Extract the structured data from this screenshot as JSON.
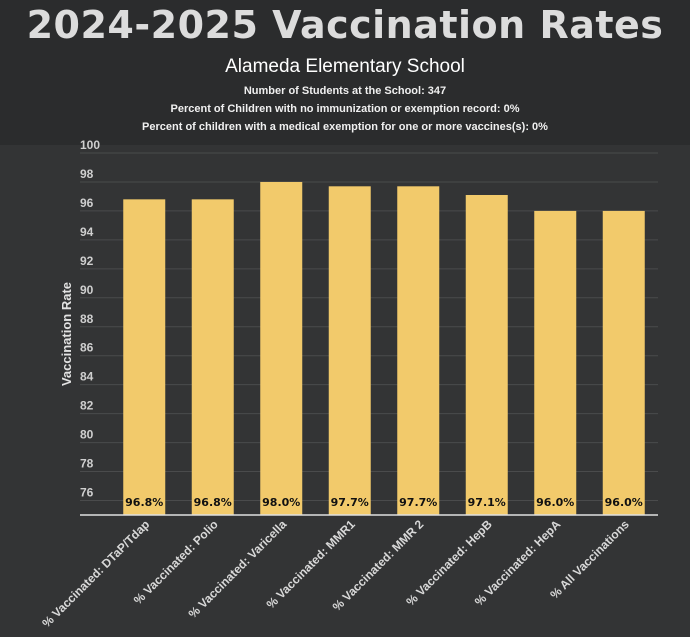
{
  "header": {
    "title": "2024-2025 Vaccination Rates",
    "school": "Alameda Elementary School",
    "students": "Number of Students at the School: 347",
    "no_record": "Percent of Children with no immunization or exemption record: 0%",
    "medical_exemption": "Percent of children with a medical exemption for one or more vaccines(s): 0%"
  },
  "colors": {
    "bar": "#f2ca6b",
    "background": "#333435",
    "header_background": "#2b2c2d"
  },
  "chart_data": {
    "type": "bar",
    "title": "2024-2025 Vaccination Rates",
    "xlabel": "",
    "ylabel": "Vaccination Rate",
    "ylim": [
      75,
      100
    ],
    "yticks": [
      76,
      78,
      80,
      82,
      84,
      86,
      88,
      90,
      92,
      94,
      96,
      98,
      100
    ],
    "grid": true,
    "legend": "none",
    "categories": [
      "% Vaccinated: DTaP/Tdap",
      "% Vaccinated: Polio",
      "% Vaccinated: Varicella",
      "% Vaccinated: MMR1",
      "% Vaccinated: MMR 2",
      "% Vaccinated: HepB",
      "% Vaccinated: HepA",
      "% All Vaccinations"
    ],
    "values": [
      96.8,
      96.8,
      98.0,
      97.7,
      97.7,
      97.1,
      96.0,
      96.0
    ],
    "data_labels": [
      "96.8%",
      "96.8%",
      "98.0%",
      "97.7%",
      "97.7%",
      "97.1%",
      "96.0%",
      "96.0%"
    ]
  }
}
